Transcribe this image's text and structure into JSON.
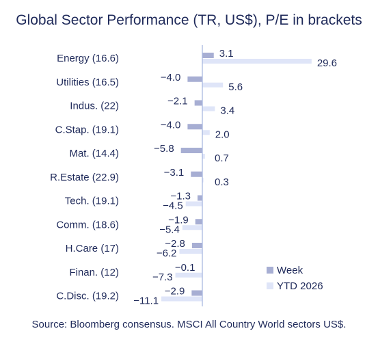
{
  "title": "Global Sector Performance (TR, US$), P/E in brackets",
  "source": "Source: Bloomberg consensus. MSCI All Country World sectors US$.",
  "colors": {
    "week": "#a7aed3",
    "ytd": "#dfe5f8",
    "axis": "#a9b8e0",
    "text": "#1f2a5a"
  },
  "chart_data": {
    "type": "bar",
    "orientation": "horizontal",
    "title": "Global Sector Performance (TR, US$), P/E in brackets",
    "categories": [
      "Energy (16.6)",
      "Utilities (16.5)",
      "Indus. (22)",
      "C.Stap. (19.1)",
      "Mat. (14.4)",
      "R.Estate (22.9)",
      "Tech. (19.1)",
      "Comm. (18.6)",
      "H.Care (17)",
      "Finan. (12)",
      "C.Disc. (19.2)"
    ],
    "series": [
      {
        "name": "Week",
        "values": [
          3.1,
          -4.0,
          -2.1,
          -4.0,
          -5.8,
          -3.1,
          -1.3,
          -1.9,
          -2.8,
          -0.1,
          -2.9
        ],
        "labels": [
          "3.1",
          "-4.0",
          "-2.1",
          "-4.0",
          "-5.8",
          "-3.1",
          "-1.3",
          "-1.9",
          "-2.8",
          "-0.1",
          "-2.9"
        ]
      },
      {
        "name": "YTD 2026",
        "values": [
          29.6,
          5.6,
          3.4,
          2.0,
          0.7,
          0.3,
          -4.5,
          -5.4,
          -6.2,
          -7.3,
          -11.1
        ],
        "labels": [
          "29.6",
          "5.6",
          "3.4",
          "2.0",
          "0.7",
          "0.3",
          "-4.5",
          "-5.4",
          "-6.2",
          "-7.3",
          "-11.1"
        ]
      }
    ],
    "legend_position": "bottom-right",
    "grid": false
  }
}
